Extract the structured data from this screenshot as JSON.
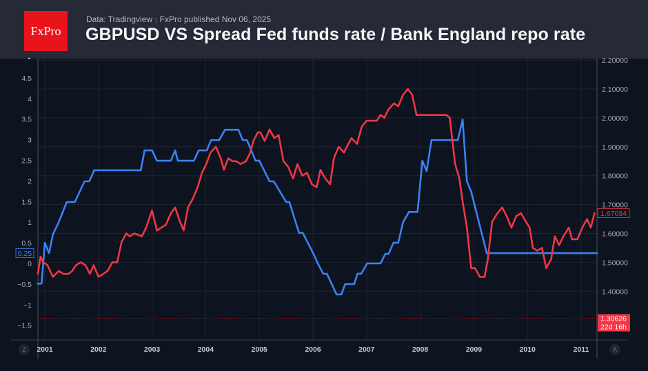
{
  "header": {
    "logo_text": "FxPro",
    "source": "Data: Tradingview",
    "separator": "|",
    "published": "FxPro published Nov 06, 2025",
    "title": "GBPUSD VS Spread Fed funds rate / Bank England repo rate"
  },
  "controls": {
    "left_button": "Z",
    "right_button": "A"
  },
  "colors": {
    "background": "#0d131f",
    "header": "#262a36",
    "spread_line": "#3b82f6",
    "gbpusd_line": "#f23645",
    "grid": "#1d2330",
    "brand": "#e8141b"
  },
  "chart_data": {
    "type": "line",
    "title": "GBPUSD VS Spread Fed funds rate / Bank England repo rate",
    "xlabel": "",
    "x_ticks": [
      "2001",
      "2002",
      "2003",
      "2004",
      "2005",
      "2006",
      "2007",
      "2008",
      "2009",
      "2010",
      "2011"
    ],
    "xlim": [
      2000.87,
      2011.3
    ],
    "grid": true,
    "left_axis": {
      "ticks": [
        "4.5",
        "4",
        "3.5",
        "3",
        "2.5",
        "2",
        "1.5",
        "1",
        "0.5",
        "0",
        "−0.5",
        "−1",
        "−1.5"
      ],
      "range": [
        -1.9,
        5.0
      ],
      "last_value_label": "0.25"
    },
    "right_axis": {
      "ticks": [
        "2.20000",
        "2.10000",
        "2.00000",
        "1.90000",
        "1.80000",
        "1.70000",
        "1.60000",
        "1.50000",
        "1.40000"
      ],
      "range": [
        1.24,
        2.21
      ],
      "last_value_label": "1.67034",
      "current_price_label": "1.30626",
      "countdown_label": "22d 16h",
      "current_price": 1.30626
    },
    "series": [
      {
        "name": "Spread Fed funds rate / Bank England repo rate",
        "axis": "left",
        "color": "#3b82f6",
        "points": [
          [
            2000.87,
            -0.49
          ],
          [
            2000.94,
            -0.49
          ],
          [
            2001.0,
            0.5
          ],
          [
            2001.08,
            0.25
          ],
          [
            2001.15,
            0.7
          ],
          [
            2001.26,
            1.0
          ],
          [
            2001.41,
            1.49
          ],
          [
            2001.56,
            1.49
          ],
          [
            2001.74,
            1.99
          ],
          [
            2001.83,
            1.99
          ],
          [
            2001.92,
            2.26
          ],
          [
            2002.79,
            2.26
          ],
          [
            2002.86,
            2.74
          ],
          [
            2003.0,
            2.74
          ],
          [
            2003.09,
            2.49
          ],
          [
            2003.35,
            2.49
          ],
          [
            2003.43,
            2.74
          ],
          [
            2003.48,
            2.49
          ],
          [
            2003.78,
            2.49
          ],
          [
            2003.87,
            2.74
          ],
          [
            2004.02,
            2.74
          ],
          [
            2004.1,
            2.99
          ],
          [
            2004.25,
            2.99
          ],
          [
            2004.36,
            3.24
          ],
          [
            2004.61,
            3.24
          ],
          [
            2004.69,
            2.99
          ],
          [
            2004.77,
            2.99
          ],
          [
            2004.93,
            2.49
          ],
          [
            2005.0,
            2.49
          ],
          [
            2005.19,
            1.99
          ],
          [
            2005.27,
            1.99
          ],
          [
            2005.5,
            1.49
          ],
          [
            2005.56,
            1.49
          ],
          [
            2005.68,
            0.99
          ],
          [
            2005.74,
            0.74
          ],
          [
            2005.81,
            0.74
          ],
          [
            2006.01,
            0.23
          ],
          [
            2006.09,
            0.0
          ],
          [
            2006.19,
            -0.25
          ],
          [
            2006.26,
            -0.25
          ],
          [
            2006.44,
            -0.75
          ],
          [
            2006.53,
            -0.75
          ],
          [
            2006.6,
            -0.5
          ],
          [
            2006.77,
            -0.5
          ],
          [
            2006.83,
            -0.25
          ],
          [
            2006.9,
            -0.25
          ],
          [
            2007.01,
            0.0
          ],
          [
            2007.26,
            0.0
          ],
          [
            2007.35,
            0.23
          ],
          [
            2007.41,
            0.23
          ],
          [
            2007.5,
            0.5
          ],
          [
            2007.59,
            0.5
          ],
          [
            2007.68,
            1.0
          ],
          [
            2007.79,
            1.25
          ],
          [
            2007.95,
            1.25
          ],
          [
            2008.04,
            2.49
          ],
          [
            2008.12,
            2.24
          ],
          [
            2008.21,
            2.99
          ],
          [
            2008.7,
            2.99
          ],
          [
            2008.79,
            3.49
          ],
          [
            2008.87,
            1.99
          ],
          [
            2008.95,
            1.74
          ],
          [
            2009.24,
            0.25
          ],
          [
            2011.3,
            0.25
          ]
        ]
      },
      {
        "name": "GBPUSD",
        "axis": "right",
        "color": "#f23645",
        "points": [
          [
            2000.87,
            1.46
          ],
          [
            2000.92,
            1.52
          ],
          [
            2000.97,
            1.5
          ],
          [
            2001.05,
            1.49
          ],
          [
            2001.15,
            1.45
          ],
          [
            2001.26,
            1.47
          ],
          [
            2001.35,
            1.46
          ],
          [
            2001.44,
            1.46
          ],
          [
            2001.51,
            1.47
          ],
          [
            2001.58,
            1.49
          ],
          [
            2001.67,
            1.5
          ],
          [
            2001.76,
            1.49
          ],
          [
            2001.84,
            1.46
          ],
          [
            2001.91,
            1.49
          ],
          [
            2002.0,
            1.45
          ],
          [
            2002.09,
            1.46
          ],
          [
            2002.17,
            1.47
          ],
          [
            2002.26,
            1.5
          ],
          [
            2002.35,
            1.5
          ],
          [
            2002.43,
            1.57
          ],
          [
            2002.52,
            1.6
          ],
          [
            2002.58,
            1.59
          ],
          [
            2002.67,
            1.6
          ],
          [
            2002.81,
            1.59
          ],
          [
            2002.89,
            1.62
          ],
          [
            2003.0,
            1.68
          ],
          [
            2003.09,
            1.61
          ],
          [
            2003.17,
            1.62
          ],
          [
            2003.26,
            1.63
          ],
          [
            2003.35,
            1.67
          ],
          [
            2003.43,
            1.69
          ],
          [
            2003.52,
            1.64
          ],
          [
            2003.59,
            1.61
          ],
          [
            2003.67,
            1.69
          ],
          [
            2003.76,
            1.72
          ],
          [
            2003.85,
            1.76
          ],
          [
            2003.93,
            1.81
          ],
          [
            2004.01,
            1.84
          ],
          [
            2004.09,
            1.88
          ],
          [
            2004.19,
            1.9
          ],
          [
            2004.28,
            1.86
          ],
          [
            2004.34,
            1.82
          ],
          [
            2004.42,
            1.86
          ],
          [
            2004.5,
            1.85
          ],
          [
            2004.57,
            1.85
          ],
          [
            2004.65,
            1.84
          ],
          [
            2004.75,
            1.85
          ],
          [
            2004.83,
            1.88
          ],
          [
            2004.89,
            1.92
          ],
          [
            2004.97,
            1.95
          ],
          [
            2005.02,
            1.95
          ],
          [
            2005.1,
            1.92
          ],
          [
            2005.19,
            1.96
          ],
          [
            2005.28,
            1.93
          ],
          [
            2005.36,
            1.94
          ],
          [
            2005.45,
            1.85
          ],
          [
            2005.54,
            1.83
          ],
          [
            2005.63,
            1.79
          ],
          [
            2005.71,
            1.84
          ],
          [
            2005.8,
            1.8
          ],
          [
            2005.89,
            1.81
          ],
          [
            2005.98,
            1.77
          ],
          [
            2006.07,
            1.76
          ],
          [
            2006.14,
            1.82
          ],
          [
            2006.23,
            1.79
          ],
          [
            2006.32,
            1.77
          ],
          [
            2006.39,
            1.86
          ],
          [
            2006.48,
            1.9
          ],
          [
            2006.58,
            1.88
          ],
          [
            2006.63,
            1.9
          ],
          [
            2006.72,
            1.93
          ],
          [
            2006.82,
            1.91
          ],
          [
            2006.91,
            1.97
          ],
          [
            2007.0,
            1.99
          ],
          [
            2007.09,
            1.99
          ],
          [
            2007.19,
            1.99
          ],
          [
            2007.26,
            2.01
          ],
          [
            2007.33,
            2.0
          ],
          [
            2007.41,
            2.03
          ],
          [
            2007.51,
            2.05
          ],
          [
            2007.59,
            2.04
          ],
          [
            2007.68,
            2.08
          ],
          [
            2007.77,
            2.1
          ],
          [
            2007.85,
            2.08
          ],
          [
            2007.93,
            2.01
          ],
          [
            2008.03,
            2.01
          ],
          [
            2008.13,
            2.01
          ],
          [
            2008.22,
            2.01
          ],
          [
            2008.29,
            2.01
          ],
          [
            2008.38,
            2.01
          ],
          [
            2008.49,
            2.01
          ],
          [
            2008.55,
            2.0
          ],
          [
            2008.6,
            1.92
          ],
          [
            2008.65,
            1.84
          ],
          [
            2008.73,
            1.79
          ],
          [
            2008.79,
            1.71
          ],
          [
            2008.87,
            1.62
          ],
          [
            2008.95,
            1.48
          ],
          [
            2009.02,
            1.48
          ],
          [
            2009.11,
            1.45
          ],
          [
            2009.2,
            1.45
          ],
          [
            2009.26,
            1.51
          ],
          [
            2009.34,
            1.64
          ],
          [
            2009.44,
            1.67
          ],
          [
            2009.53,
            1.69
          ],
          [
            2009.61,
            1.66
          ],
          [
            2009.7,
            1.62
          ],
          [
            2009.79,
            1.66
          ],
          [
            2009.88,
            1.67
          ],
          [
            2009.97,
            1.64
          ],
          [
            2010.04,
            1.62
          ],
          [
            2010.1,
            1.55
          ],
          [
            2010.18,
            1.54
          ],
          [
            2010.27,
            1.55
          ],
          [
            2010.35,
            1.48
          ],
          [
            2010.44,
            1.51
          ],
          [
            2010.51,
            1.59
          ],
          [
            2010.59,
            1.56
          ],
          [
            2010.67,
            1.59
          ],
          [
            2010.77,
            1.62
          ],
          [
            2010.83,
            1.58
          ],
          [
            2010.93,
            1.58
          ],
          [
            2011.02,
            1.62
          ],
          [
            2011.11,
            1.65
          ],
          [
            2011.18,
            1.62
          ],
          [
            2011.25,
            1.67034
          ]
        ]
      }
    ],
    "reference_line": {
      "axis": "right",
      "value": 1.30626,
      "style": "dotted",
      "color": "#f23645"
    }
  }
}
